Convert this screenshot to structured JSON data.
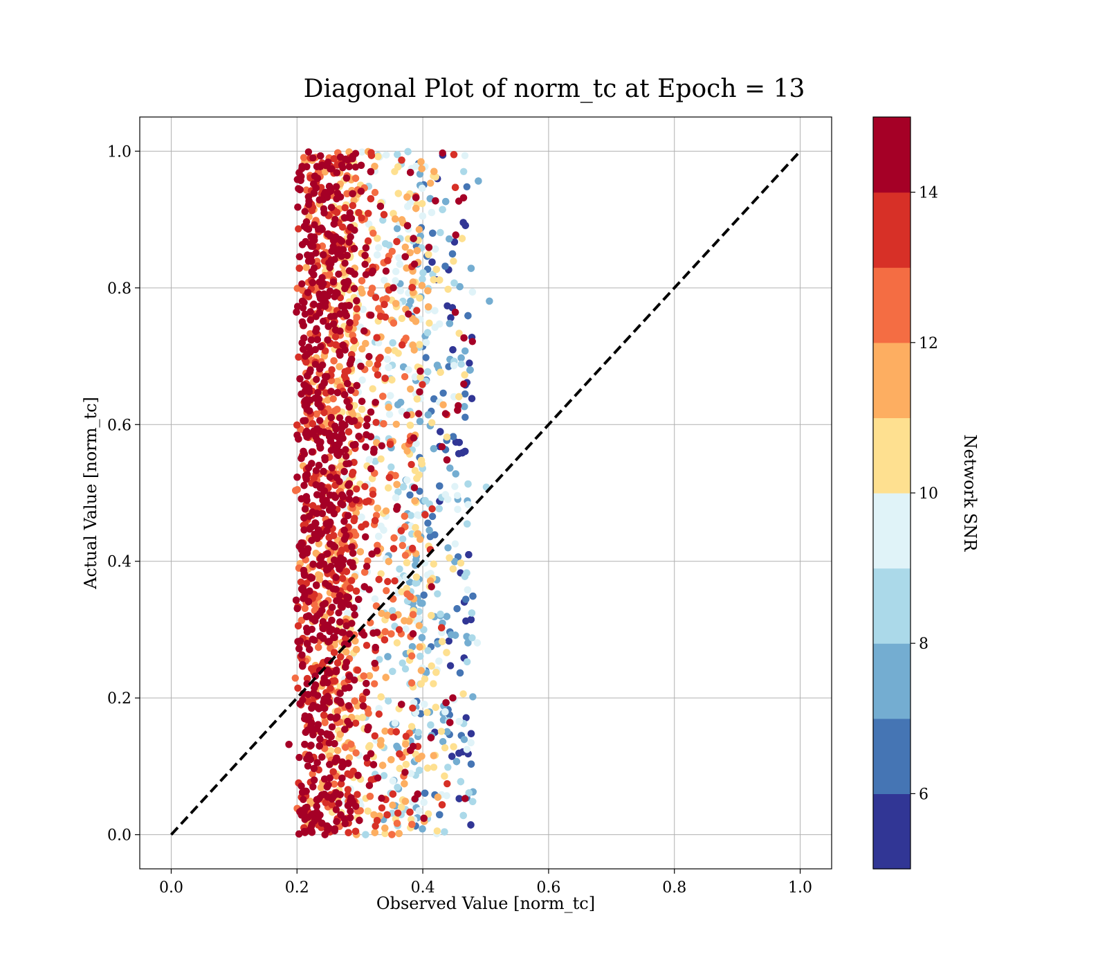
{
  "chart_data": {
    "type": "scatter",
    "title": "Diagonal Plot of norm_tc at Epoch = 13",
    "xlabel": "Observed Value [norm_tc]",
    "ylabel": "Actual Value [norm_tc]",
    "xlim": [
      -0.05,
      1.05
    ],
    "ylim": [
      -0.05,
      1.05
    ],
    "xticks": [
      "0.0",
      "0.2",
      "0.4",
      "0.6",
      "0.8",
      "1.0"
    ],
    "yticks": [
      "0.0",
      "0.2",
      "0.4",
      "0.6",
      "0.8",
      "1.0"
    ],
    "grid": true,
    "reference_line": {
      "style": "dashed",
      "color": "#000000",
      "from": [
        0,
        0
      ],
      "to": [
        1,
        1
      ]
    },
    "colorbar": {
      "label": "Network SNR",
      "range": [
        5,
        15
      ],
      "ticks": [
        "6",
        "8",
        "10",
        "12",
        "14"
      ],
      "colors": [
        "#313695",
        "#4575b4",
        "#74add1",
        "#abd9e9",
        "#e0f3f8",
        "#fee090",
        "#fdae61",
        "#f46d43",
        "#d73027",
        "#a50026"
      ]
    },
    "series_summary": {
      "x_range": [
        0.18,
        0.51
      ],
      "y_range": [
        0.0,
        1.0
      ],
      "trend": "high SNR concentrated near x 0.20-0.30; lower SNR toward x 0.45-0.50"
    }
  }
}
